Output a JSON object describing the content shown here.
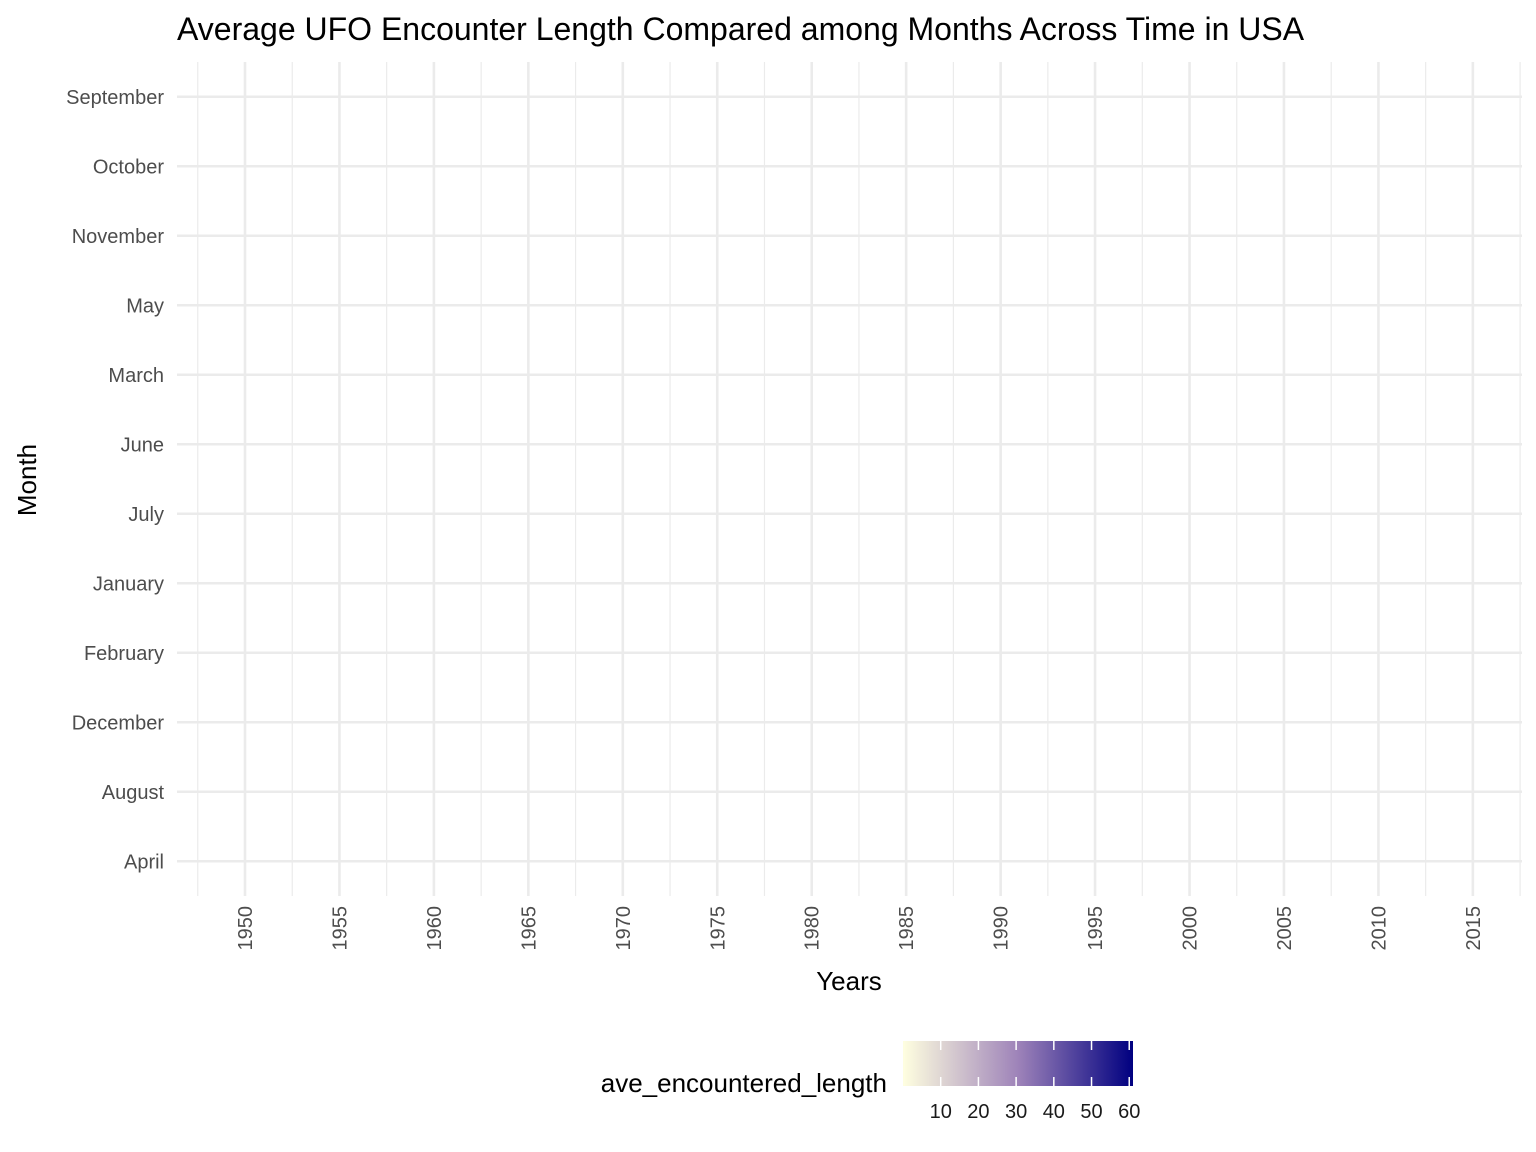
{
  "chart_data": {
    "type": "heatmap",
    "title": "Average UFO Encounter Length Compared among Months Across Time in USA",
    "xlabel": "Years",
    "ylabel": "Month",
    "x_ticks": [
      1950,
      1955,
      1960,
      1965,
      1970,
      1975,
      1980,
      1985,
      1990,
      1995,
      2000,
      2005,
      2010,
      2015
    ],
    "xlim": [
      1946.4,
      2017.6
    ],
    "y_categories": [
      "September",
      "October",
      "November",
      "May",
      "March",
      "June",
      "July",
      "January",
      "February",
      "December",
      "August",
      "April"
    ],
    "cells": [],
    "grid": true,
    "legend": {
      "title": "ave_encountered_length",
      "position": "bottom",
      "range": [
        0,
        61
      ],
      "ticks": [
        10,
        20,
        30,
        40,
        50,
        60
      ],
      "color_low": "#FFFFE0",
      "color_mid": "#9E83B9",
      "color_high": "#000080"
    }
  }
}
